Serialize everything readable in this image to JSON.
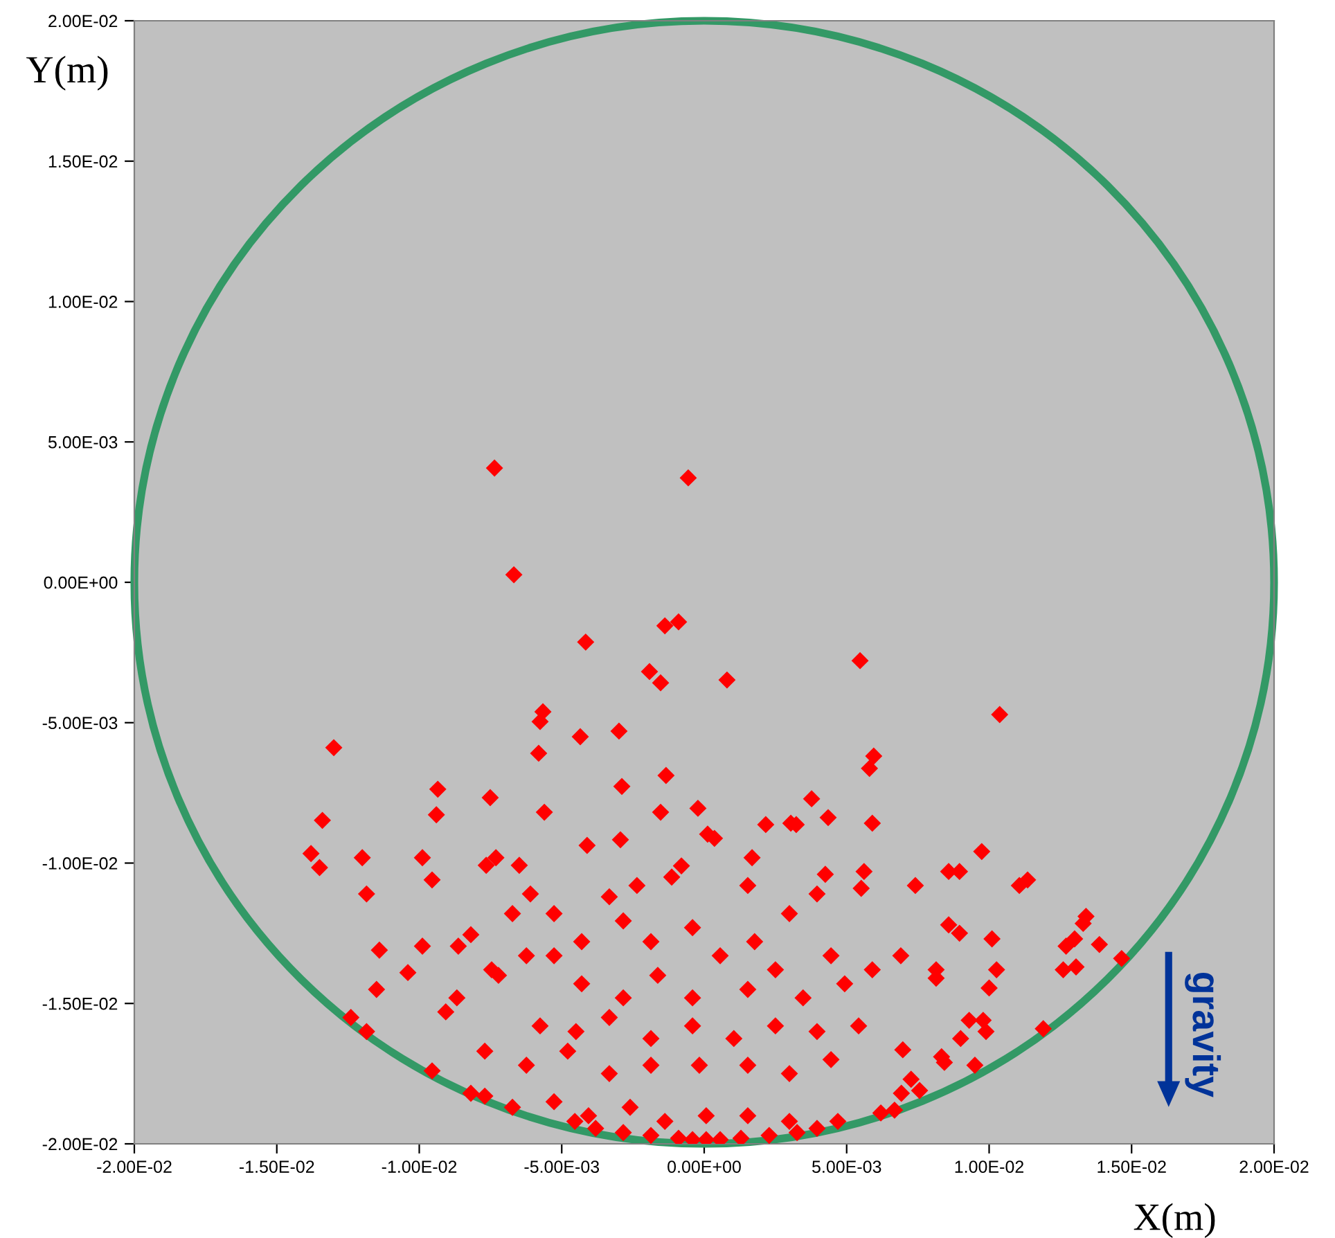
{
  "chart_data": {
    "type": "scatter",
    "xlabel": "X(m)",
    "ylabel": "Y(m)",
    "xlim": [
      -0.02,
      0.02
    ],
    "ylim": [
      -0.02,
      0.02
    ],
    "xticks": [
      {
        "value": -0.02,
        "label": "-2.00E-02"
      },
      {
        "value": -0.015,
        "label": "-1.50E-02"
      },
      {
        "value": -0.01,
        "label": "-1.00E-02"
      },
      {
        "value": -0.005,
        "label": "-5.00E-03"
      },
      {
        "value": 0,
        "label": "0.00E+00"
      },
      {
        "value": 0.005,
        "label": "5.00E-03"
      },
      {
        "value": 0.01,
        "label": "1.00E-02"
      },
      {
        "value": 0.015,
        "label": "1.50E-02"
      },
      {
        "value": 0.02,
        "label": "2.00E-02"
      }
    ],
    "yticks": [
      {
        "value": -0.02,
        "label": "-2.00E-02"
      },
      {
        "value": -0.015,
        "label": "-1.50E-02"
      },
      {
        "value": -0.01,
        "label": "-1.00E-02"
      },
      {
        "value": -0.005,
        "label": "-5.00E-03"
      },
      {
        "value": 0,
        "label": "0.00E+00"
      },
      {
        "value": 0.005,
        "label": "5.00E-03"
      },
      {
        "value": 0.01,
        "label": "1.00E-02"
      },
      {
        "value": 0.015,
        "label": "1.50E-02"
      },
      {
        "value": 0.02,
        "label": "2.00E-02"
      }
    ],
    "grid": false,
    "legend": false,
    "annotations": [
      "gravity"
    ],
    "series": [
      {
        "color": "#ff0000",
        "marker": "diamond",
        "x": [
          -0.00736,
          -0.00056,
          -0.00668,
          -0.0009,
          -0.00138,
          -0.00416,
          -0.00192,
          -0.00153,
          0.0008,
          0.00547,
          -0.00566,
          -0.00576,
          -0.00299,
          -0.00435,
          -0.013,
          0.01037,
          -0.00581,
          0.00595,
          0.0058,
          -0.00134,
          -0.00935,
          -0.00751,
          -0.00289,
          0.00377,
          -0.00022,
          -0.00561,
          -0.0094,
          -0.0134,
          -0.00153,
          0.00435,
          0.00304,
          0.00323,
          0.0059,
          0.00216,
          0.00012,
          0.00036,
          -0.00294,
          -0.00411,
          -0.0138,
          -0.0135,
          -0.012,
          0.00974,
          -0.00765,
          -0.00731,
          -0.00649,
          -0.00989,
          -0.00955,
          0.01135,
          0.01106,
          -0.01185,
          0.00168,
          0.00425,
          0.00561,
          0.00858,
          0.00896,
          0.00741,
          -0.0114,
          -0.00989,
          -0.00863,
          -0.0124,
          -0.01185,
          -0.0115,
          -0.00907,
          -0.00955,
          -0.0104,
          0.0127,
          0.013,
          0.0133,
          0.01387,
          0.0134,
          0.01465,
          0.01305,
          0.0126,
          0.0119,
          0.01,
          0.00979,
          0.00989,
          0.0095,
          0.00858,
          0.00896,
          0.00814,
          0.00814,
          0.0101,
          0.01026,
          0.0093,
          0.00833,
          0.00843,
          0.00697,
          0.00692,
          0.00726,
          0.00756,
          0.00668,
          0.0062,
          0.009,
          -0.00333,
          -0.00236,
          -0.00114,
          -0.0008,
          0.00153,
          0.00299,
          0.00396,
          0.00551,
          -0.00527,
          -0.00673,
          -0.0061,
          -0.00819,
          -0.00746,
          -0.00722,
          -0.00868,
          -0.00624,
          -0.00527,
          -0.0043,
          -0.00284,
          -0.00187,
          -0.00041,
          0.00056,
          0.00177,
          0.0025,
          0.00445,
          0.0059,
          0.0069,
          -0.0043,
          -0.00284,
          -0.00163,
          -0.00041,
          0.00153,
          0.00347,
          0.00493,
          -0.00576,
          -0.0045,
          -0.00333,
          -0.00187,
          -0.00041,
          0.00104,
          0.0025,
          0.00396,
          0.00542,
          -0.0077,
          -0.00624,
          -0.00479,
          -0.00333,
          -0.00187,
          -0.00017,
          0.00153,
          0.00299,
          0.00445,
          -0.00819,
          -0.00673,
          -0.00527,
          -0.00406,
          -0.0026,
          -0.00138,
          7e-05,
          0.00153,
          0.00299,
          0.00469,
          -0.00284,
          -0.00187,
          -0.0009,
          -0.00041,
          7e-05,
          0.00056,
          0.00129,
          0.00228,
          0.00326,
          0.00396,
          -0.00381,
          -0.00454,
          -0.0077
        ],
        "values": [
          0.00407,
          0.00372,
          0.00027,
          -0.00141,
          -0.00155,
          -0.00213,
          -0.00318,
          -0.00358,
          -0.00348,
          -0.00279,
          -0.00461,
          -0.00496,
          -0.0053,
          -0.0055,
          -0.00589,
          -0.00471,
          -0.00609,
          -0.00619,
          -0.00663,
          -0.00688,
          -0.00737,
          -0.00767,
          -0.00727,
          -0.00771,
          -0.00805,
          -0.00819,
          -0.00828,
          -0.00848,
          -0.00819,
          -0.00838,
          -0.00858,
          -0.00863,
          -0.00858,
          -0.00863,
          -0.00897,
          -0.00912,
          -0.00917,
          -0.00937,
          -0.00966,
          -0.01016,
          -0.00981,
          -0.00959,
          -0.01008,
          -0.00981,
          -0.01008,
          -0.00981,
          -0.0106,
          -0.0106,
          -0.0108,
          -0.0111,
          -0.00981,
          -0.0104,
          -0.0103,
          -0.0103,
          -0.0103,
          -0.0108,
          -0.0131,
          -0.01296,
          -0.01296,
          -0.0155,
          -0.016,
          -0.0145,
          -0.0153,
          -0.0174,
          -0.0139,
          -0.01296,
          -0.0127,
          -0.01215,
          -0.0129,
          -0.0119,
          -0.0134,
          -0.0137,
          -0.0138,
          -0.0159,
          -0.01445,
          -0.0156,
          -0.016,
          -0.0172,
          -0.0122,
          -0.0125,
          -0.0138,
          -0.0141,
          -0.0127,
          -0.0138,
          -0.0156,
          -0.0169,
          -0.0171,
          -0.01665,
          -0.0182,
          -0.0177,
          -0.0181,
          -0.0188,
          -0.0189,
          -0.01625,
          -0.0112,
          -0.0108,
          -0.0105,
          -0.0101,
          -0.0108,
          -0.0118,
          -0.0111,
          -0.0109,
          -0.0118,
          -0.0118,
          -0.0111,
          -0.01255,
          -0.0138,
          -0.014,
          -0.0148,
          -0.0133,
          -0.0133,
          -0.0128,
          -0.01206,
          -0.0128,
          -0.0123,
          -0.0133,
          -0.0128,
          -0.0138,
          -0.0133,
          -0.0138,
          -0.0133,
          -0.0143,
          -0.0148,
          -0.014,
          -0.0148,
          -0.0145,
          -0.0148,
          -0.0143,
          -0.0158,
          -0.016,
          -0.0155,
          -0.01625,
          -0.0158,
          -0.01625,
          -0.0158,
          -0.016,
          -0.0158,
          -0.0167,
          -0.0172,
          -0.0167,
          -0.0175,
          -0.0172,
          -0.0172,
          -0.0172,
          -0.0175,
          -0.017,
          -0.0182,
          -0.0187,
          -0.0185,
          -0.019,
          -0.0187,
          -0.0192,
          -0.019,
          -0.019,
          -0.0192,
          -0.0192,
          -0.0196,
          -0.0197,
          -0.0198,
          -0.01985,
          -0.01985,
          -0.01985,
          -0.0198,
          -0.0197,
          -0.0196,
          -0.01945,
          -0.01945,
          -0.0192,
          -0.0183
        ]
      }
    ]
  }
}
